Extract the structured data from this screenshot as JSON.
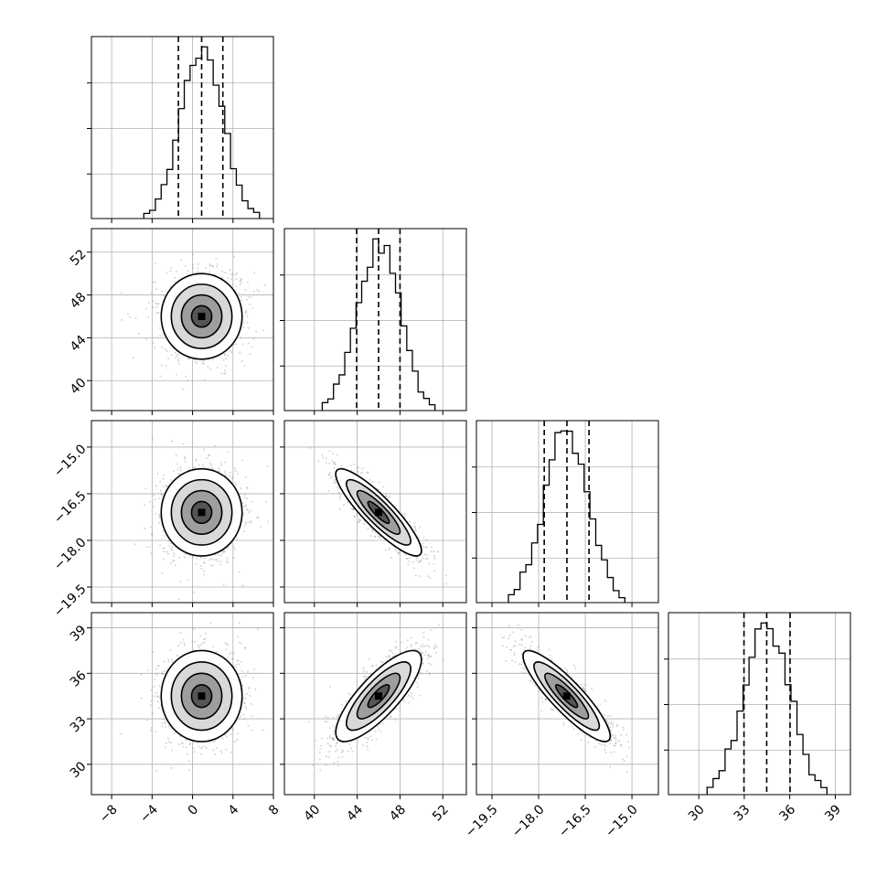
{
  "figure": {
    "type": "corner plot"
  },
  "colors": {
    "line": "#000000",
    "grid": "#b0b0b0",
    "points": "#888888",
    "background": "#ffffff"
  },
  "chart_data": {
    "type": "corner",
    "n_params": 4,
    "params": [
      {
        "name": "",
        "range": [
          -10,
          8
        ],
        "ticks": [
          -8,
          -4,
          0,
          4,
          8
        ],
        "tick_labels": [
          "−8",
          "−4",
          "0",
          "4",
          "8"
        ],
        "quantiles": [
          -1.4,
          0.9,
          3.0
        ],
        "mean": 0.9,
        "sd": 2.0
      },
      {
        "name": "",
        "range": [
          37.2,
          54.2
        ],
        "ticks": [
          40,
          44,
          48,
          52
        ],
        "tick_labels": [
          "40",
          "44",
          "48",
          "52"
        ],
        "quantiles": [
          43.95,
          46.0,
          48.0
        ],
        "mean": 46.0,
        "sd": 2.0
      },
      {
        "name": "",
        "range": [
          -20.0,
          -14.15
        ],
        "ticks": [
          -19.5,
          -18.0,
          -16.5,
          -15.0
        ],
        "tick_labels": [
          "−19.5",
          "−18.0",
          "−16.5",
          "−15.0"
        ],
        "quantiles": [
          -17.82,
          -17.09,
          -16.38
        ],
        "mean": -17.1,
        "sd": 0.7
      },
      {
        "name": "",
        "range": [
          28.0,
          40.0
        ],
        "ticks": [
          30,
          33,
          36,
          39
        ],
        "tick_labels": [
          "30",
          "33",
          "36",
          "39"
        ],
        "quantiles": [
          32.98,
          34.48,
          36.02
        ],
        "mean": 34.5,
        "sd": 1.5
      }
    ],
    "correlations": [
      [
        1.0,
        0.0,
        0.0,
        0.0
      ],
      [
        0.0,
        1.0,
        -0.88,
        0.8
      ],
      [
        0.0,
        -0.88,
        1.0,
        -0.88
      ],
      [
        0.0,
        0.8,
        -0.88,
        1.0
      ]
    ],
    "histogram_bins": 20,
    "grid": true,
    "quantile_line_style": "dashed",
    "contour_levels": [
      0.5,
      1.0,
      1.5,
      2.0
    ]
  }
}
